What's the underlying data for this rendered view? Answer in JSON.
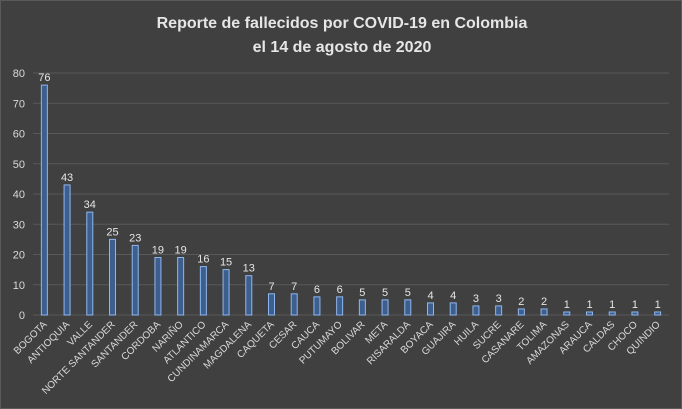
{
  "chart_data": {
    "type": "bar",
    "title": [
      "Reporte de fallecidos por COVID-19 en Colombia",
      "el 14 de agosto de 2020"
    ],
    "xlabel": "",
    "ylabel": "",
    "ylim": [
      0,
      80
    ],
    "yticks": [
      0,
      10,
      20,
      30,
      40,
      50,
      60,
      70,
      80
    ],
    "grid": true,
    "legend": "none",
    "categories": [
      "BOGOTA",
      "ANTIOQUIA",
      "VALLE",
      "NORTE SANTANDER",
      "SANTANDER",
      "CORDOBA",
      "NARIÑO",
      "ATLANTICO",
      "CUNDINAMARCA",
      "MAGDALENA",
      "CAQUETA",
      "CESAR",
      "CAUCA",
      "PUTUMAYO",
      "BOLIVAR",
      "META",
      "RISARALDA",
      "BOYACA",
      "GUAJIRA",
      "HUILA",
      "SUCRE",
      "CASANARE",
      "TOLIMA",
      "AMAZONAS",
      "ARAUCA",
      "CALDAS",
      "CHOCO",
      "QUINDIO"
    ],
    "values": [
      76,
      43,
      34,
      25,
      23,
      19,
      19,
      16,
      15,
      13,
      7,
      7,
      6,
      6,
      5,
      5,
      5,
      4,
      4,
      3,
      3,
      2,
      2,
      1,
      1,
      1,
      1,
      1
    ],
    "colors": {
      "background": "#404040",
      "bar_fill": "#3d5f8e",
      "bar_edge": "#8fb6ee",
      "grid": "#595959",
      "text": "#d9d9d9"
    }
  }
}
